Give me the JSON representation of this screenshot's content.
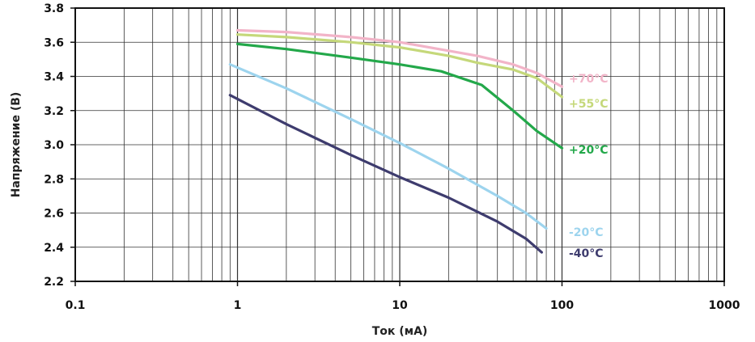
{
  "chart_data": {
    "type": "line",
    "xlabel": "Ток (мА)",
    "ylabel": "Напряжение (В)",
    "x_scale": "log",
    "xlim": [
      0.1,
      1000
    ],
    "ylim": [
      2.2,
      3.8
    ],
    "x_ticks": [
      {
        "value": 0.1,
        "label": "0.1"
      },
      {
        "value": 1,
        "label": "1"
      },
      {
        "value": 10,
        "label": "10"
      },
      {
        "value": 100,
        "label": "100"
      },
      {
        "value": 1000,
        "label": "1000"
      }
    ],
    "y_ticks": [
      {
        "value": 2.2,
        "label": "2.2"
      },
      {
        "value": 2.4,
        "label": "2.4"
      },
      {
        "value": 2.6,
        "label": "2.6"
      },
      {
        "value": 2.8,
        "label": "2.8"
      },
      {
        "value": 3.0,
        "label": "3.0"
      },
      {
        "value": 3.2,
        "label": "3.2"
      },
      {
        "value": 3.4,
        "label": "3.4"
      },
      {
        "value": 3.6,
        "label": "3.6"
      },
      {
        "value": 3.8,
        "label": "3.8"
      }
    ],
    "grid": true,
    "legend": "inline labels at line ends",
    "series": [
      {
        "name": "+70°C",
        "color": "#f2b4c8",
        "points": [
          [
            1,
            3.67
          ],
          [
            2,
            3.66
          ],
          [
            5,
            3.63
          ],
          [
            10,
            3.6
          ],
          [
            20,
            3.55
          ],
          [
            30,
            3.52
          ],
          [
            50,
            3.47
          ],
          [
            70,
            3.42
          ],
          [
            100,
            3.34
          ]
        ]
      },
      {
        "name": "+55°C",
        "color": "#c5d87a",
        "points": [
          [
            1,
            3.645
          ],
          [
            2,
            3.63
          ],
          [
            5,
            3.6
          ],
          [
            10,
            3.57
          ],
          [
            20,
            3.52
          ],
          [
            30,
            3.48
          ],
          [
            50,
            3.44
          ],
          [
            70,
            3.39
          ],
          [
            100,
            3.28
          ]
        ]
      },
      {
        "name": "+20°C",
        "color": "#23a84a",
        "points": [
          [
            1,
            3.59
          ],
          [
            2,
            3.56
          ],
          [
            5,
            3.51
          ],
          [
            10,
            3.47
          ],
          [
            18,
            3.43
          ],
          [
            32,
            3.35
          ],
          [
            50,
            3.2
          ],
          [
            70,
            3.08
          ],
          [
            100,
            2.98
          ]
        ]
      },
      {
        "name": "-20°C",
        "color": "#9dd4ee",
        "points": [
          [
            0.9,
            3.47
          ],
          [
            2,
            3.33
          ],
          [
            5,
            3.15
          ],
          [
            10,
            3.01
          ],
          [
            20,
            2.86
          ],
          [
            40,
            2.7
          ],
          [
            60,
            2.6
          ],
          [
            80,
            2.51
          ]
        ]
      },
      {
        "name": "-40°C",
        "color": "#3e3c6e",
        "points": [
          [
            0.9,
            3.29
          ],
          [
            2,
            3.12
          ],
          [
            5,
            2.94
          ],
          [
            10,
            2.81
          ],
          [
            20,
            2.69
          ],
          [
            40,
            2.55
          ],
          [
            60,
            2.45
          ],
          [
            75,
            2.37
          ]
        ]
      }
    ]
  }
}
